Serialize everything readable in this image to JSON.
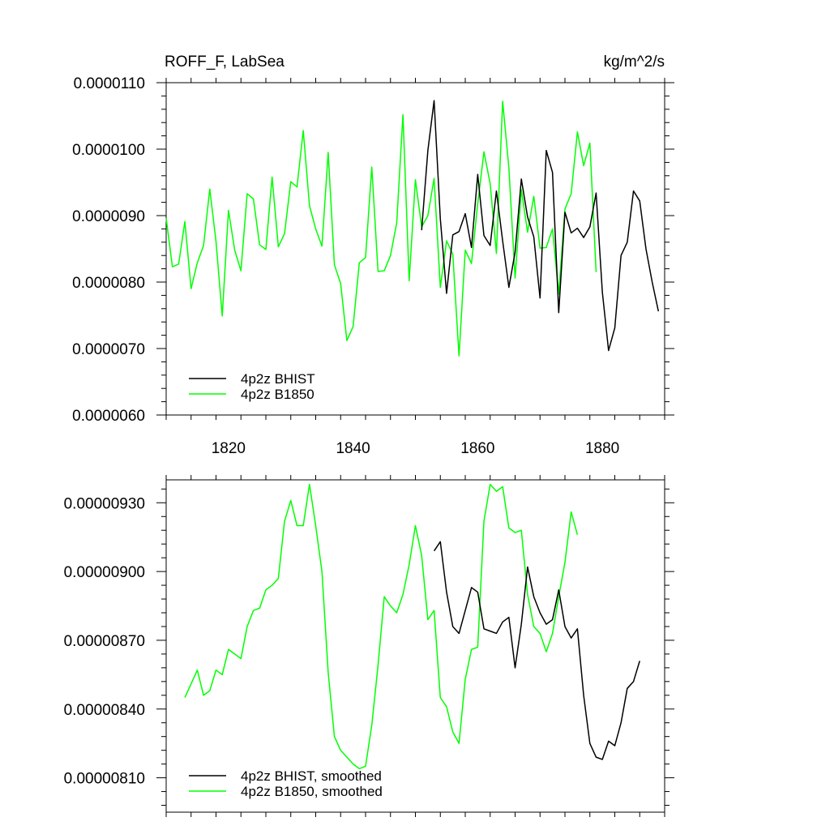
{
  "colors": {
    "bhist": "#000000",
    "b1850": "#00ff00"
  },
  "chart_data": [
    {
      "type": "line",
      "title": "ROFF_F, LabSea",
      "units": "kg/m^2/s",
      "xlim": [
        1810,
        1890
      ],
      "ylim": [
        6e-06,
        1.1e-05
      ],
      "x_ticks": [
        1820,
        1840,
        1860,
        1880
      ],
      "x_tick_labels": [
        "1820",
        "1840",
        "1860",
        "1880"
      ],
      "y_ticks": [
        6e-06,
        7e-06,
        8e-06,
        9e-06,
        1e-05,
        1.1e-05
      ],
      "y_tick_labels": [
        "0.0000060",
        "0.0000070",
        "0.0000080",
        "0.0000090",
        "0.0000100",
        "0.0000110"
      ],
      "legend_position": "bottom-left",
      "series": [
        {
          "name": "4p2z BHIST",
          "color": "#000000",
          "x": [
            1851,
            1852,
            1853,
            1854,
            1855,
            1856,
            1857,
            1858,
            1859,
            1860,
            1861,
            1862,
            1863,
            1864,
            1865,
            1866,
            1867,
            1868,
            1869,
            1870,
            1871,
            1872,
            1873,
            1874,
            1875,
            1876,
            1877,
            1878,
            1879,
            1880,
            1881,
            1882,
            1883,
            1884,
            1885,
            1886,
            1887,
            1888,
            1889
          ],
          "y": [
            8.78e-06,
            9.98e-06,
            1.073e-05,
            8.95e-06,
            7.83e-06,
            8.71e-06,
            8.76e-06,
            9.03e-06,
            8.52e-06,
            9.62e-06,
            8.7e-06,
            8.55e-06,
            9.37e-06,
            8.62e-06,
            7.92e-06,
            8.45e-06,
            9.55e-06,
            8.98e-06,
            8.68e-06,
            7.76e-06,
            9.98e-06,
            9.65e-06,
            7.54e-06,
            9.05e-06,
            8.74e-06,
            8.81e-06,
            8.67e-06,
            8.83e-06,
            9.34e-06,
            7.85e-06,
            6.97e-06,
            7.31e-06,
            8.4e-06,
            8.6e-06,
            9.37e-06,
            9.22e-06,
            8.5e-06,
            8e-06,
            7.56e-06
          ]
        },
        {
          "name": "4p2z B1850",
          "color": "#00ff00",
          "x": [
            1810,
            1811,
            1812,
            1813,
            1814,
            1815,
            1816,
            1817,
            1818,
            1819,
            1820,
            1821,
            1822,
            1823,
            1824,
            1825,
            1826,
            1827,
            1828,
            1829,
            1830,
            1831,
            1832,
            1833,
            1834,
            1835,
            1836,
            1837,
            1838,
            1839,
            1840,
            1841,
            1842,
            1843,
            1844,
            1845,
            1846,
            1847,
            1848,
            1849,
            1850,
            1851,
            1852,
            1853,
            1854,
            1855,
            1856,
            1857,
            1858,
            1859,
            1860,
            1861,
            1862,
            1863,
            1864,
            1865,
            1866,
            1867,
            1868,
            1869,
            1870,
            1871,
            1872,
            1873,
            1874,
            1875,
            1876,
            1877,
            1878,
            1879
          ],
          "y": [
            8.96e-06,
            8.23e-06,
            8.27e-06,
            8.91e-06,
            7.9e-06,
            8.29e-06,
            8.55e-06,
            9.4e-06,
            8.61e-06,
            7.49e-06,
            9.08e-06,
            8.48e-06,
            8.17e-06,
            9.33e-06,
            9.25e-06,
            8.56e-06,
            8.49e-06,
            9.58e-06,
            8.53e-06,
            8.73e-06,
            9.51e-06,
            9.43e-06,
            1.028e-05,
            9.15e-06,
            8.8e-06,
            8.54e-06,
            9.95e-06,
            8.26e-06,
            7.98e-06,
            7.12e-06,
            7.33e-06,
            8.29e-06,
            8.37e-06,
            9.73e-06,
            8.16e-06,
            8.17e-06,
            8.4e-06,
            8.89e-06,
            1.052e-05,
            8.02e-06,
            9.54e-06,
            8.83e-06,
            9e-06,
            9.56e-06,
            7.92e-06,
            8.62e-06,
            8.42e-06,
            6.89e-06,
            8.48e-06,
            8.28e-06,
            9.18e-06,
            9.96e-06,
            9.48e-06,
            8.43e-06,
            1.072e-05,
            9.72e-06,
            8.06e-06,
            9.39e-06,
            8.75e-06,
            9.29e-06,
            8.51e-06,
            8.52e-06,
            8.8e-06,
            7.82e-06,
            9.1e-06,
            9.33e-06,
            1.026e-05,
            9.75e-06,
            1.009e-05,
            8.15e-06
          ]
        }
      ]
    },
    {
      "type": "line",
      "title": "",
      "xlim": [
        1810,
        1890
      ],
      "ylim": [
        7.95e-06,
        9.4e-06
      ],
      "x_ticks": [
        1820,
        1840,
        1860,
        1880
      ],
      "y_ticks": [
        8.1e-06,
        8.4e-06,
        8.7e-06,
        9e-06,
        9.3e-06
      ],
      "y_tick_labels": [
        "0.00000810",
        "0.00000840",
        "0.00000870",
        "0.00000900",
        "0.00000930"
      ],
      "legend_position": "bottom-left",
      "series": [
        {
          "name": "4p2z BHIST, smoothed",
          "color": "#000000",
          "x": [
            1853,
            1854,
            1855,
            1856,
            1857,
            1858,
            1859,
            1860,
            1861,
            1862,
            1863,
            1864,
            1865,
            1866,
            1867,
            1868,
            1869,
            1870,
            1871,
            1872,
            1873,
            1874,
            1875,
            1876,
            1877,
            1878,
            1879,
            1880,
            1881,
            1882,
            1883,
            1884,
            1885,
            1886
          ],
          "y": [
            9.09e-06,
            9.13e-06,
            8.91e-06,
            8.76e-06,
            8.73e-06,
            8.83e-06,
            8.93e-06,
            8.91e-06,
            8.75e-06,
            8.74e-06,
            8.73e-06,
            8.78e-06,
            8.8e-06,
            8.58e-06,
            8.77e-06,
            9.02e-06,
            8.89e-06,
            8.82e-06,
            8.77e-06,
            8.79e-06,
            8.92e-06,
            8.76e-06,
            8.71e-06,
            8.75e-06,
            8.46e-06,
            8.25e-06,
            8.19e-06,
            8.18e-06,
            8.26e-06,
            8.24e-06,
            8.34e-06,
            8.49e-06,
            8.52e-06,
            8.61e-06
          ]
        },
        {
          "name": "4p2z B1850, smoothed",
          "color": "#00ff00",
          "x": [
            1813,
            1814,
            1815,
            1816,
            1817,
            1818,
            1819,
            1820,
            1821,
            1822,
            1823,
            1824,
            1825,
            1826,
            1827,
            1828,
            1829,
            1830,
            1831,
            1832,
            1833,
            1834,
            1835,
            1836,
            1837,
            1838,
            1839,
            1840,
            1841,
            1842,
            1843,
            1844,
            1845,
            1846,
            1847,
            1848,
            1849,
            1850,
            1851,
            1852,
            1853,
            1854,
            1855,
            1856,
            1857,
            1858,
            1859,
            1860,
            1861,
            1862,
            1863,
            1864,
            1865,
            1866,
            1867,
            1868,
            1869,
            1870,
            1871,
            1872,
            1873,
            1874,
            1875,
            1876
          ],
          "y": [
            8.45e-06,
            8.51e-06,
            8.57e-06,
            8.46e-06,
            8.48e-06,
            8.57e-06,
            8.55e-06,
            8.66e-06,
            8.64e-06,
            8.62e-06,
            8.76e-06,
            8.83e-06,
            8.84e-06,
            8.92e-06,
            8.94e-06,
            8.97e-06,
            9.22e-06,
            9.31e-06,
            9.2e-06,
            9.2e-06,
            9.38e-06,
            9.2e-06,
            9e-06,
            8.56e-06,
            8.28e-06,
            8.22e-06,
            8.19e-06,
            8.16e-06,
            8.14e-06,
            8.15e-06,
            8.33e-06,
            8.59e-06,
            8.89e-06,
            8.85e-06,
            8.82e-06,
            8.9e-06,
            9.03e-06,
            9.2e-06,
            9.07e-06,
            8.79e-06,
            8.83e-06,
            8.45e-06,
            8.41e-06,
            8.3e-06,
            8.25e-06,
            8.53e-06,
            8.66e-06,
            8.67e-06,
            9.22e-06,
            9.38e-06,
            9.35e-06,
            9.37e-06,
            9.19e-06,
            9.17e-06,
            9.18e-06,
            8.9e-06,
            8.76e-06,
            8.73e-06,
            8.65e-06,
            8.73e-06,
            8.89e-06,
            9.04e-06,
            9.26e-06,
            9.16e-06
          ]
        }
      ]
    }
  ]
}
